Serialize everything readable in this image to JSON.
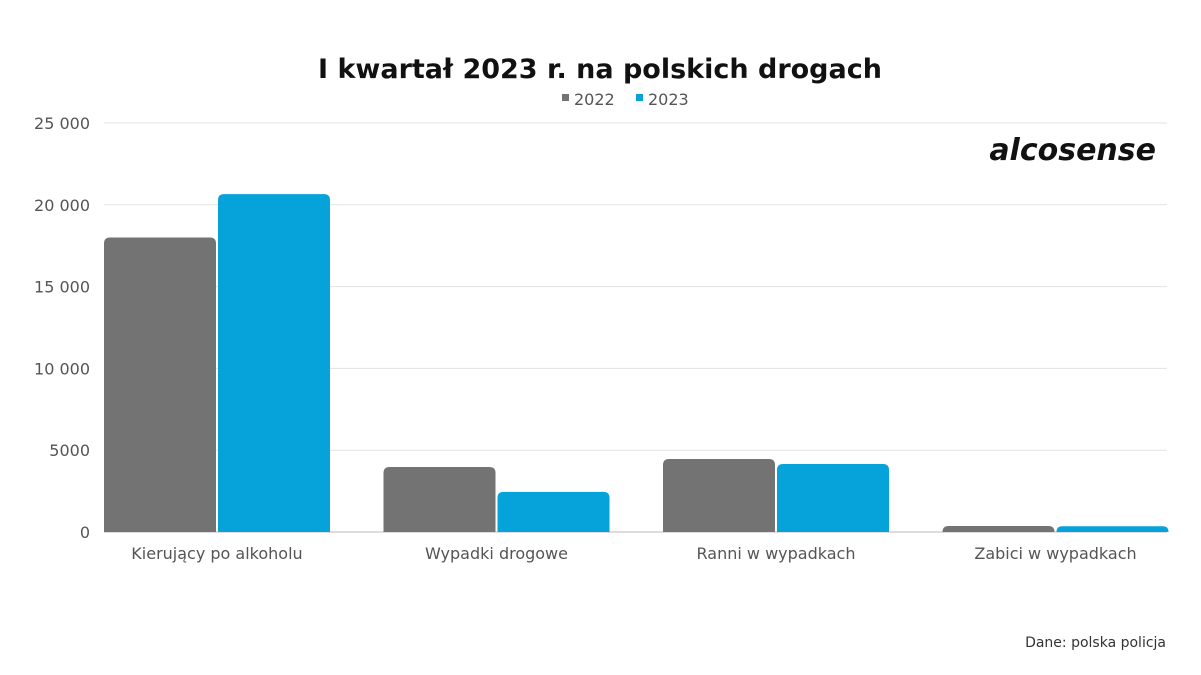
{
  "chart_data": {
    "type": "bar",
    "title": "I kwartał 2023 r. na polskich drogach",
    "categories": [
      "Kierujący po alkoholu",
      "Wypadki drogowe",
      "Ranni w wypadkach",
      "Zabici w wypadkach"
    ],
    "series": [
      {
        "name": "2022",
        "color": "#737373",
        "values": [
          18000,
          3970,
          4460,
          370
        ]
      },
      {
        "name": "2023",
        "color": "#06a3da",
        "values": [
          20650,
          2450,
          4160,
          350
        ]
      }
    ],
    "ylim": [
      0,
      25000
    ],
    "yticks": [
      0,
      5000,
      10000,
      15000,
      20000,
      25000
    ],
    "ytick_labels": [
      "0",
      "5000",
      "10 000",
      "15 000",
      "20 000",
      "25 000"
    ],
    "xlabel": "",
    "ylabel": "",
    "grid": true,
    "legend": "top-center"
  },
  "logo": "alcosense",
  "source": "Dane: polska policja"
}
